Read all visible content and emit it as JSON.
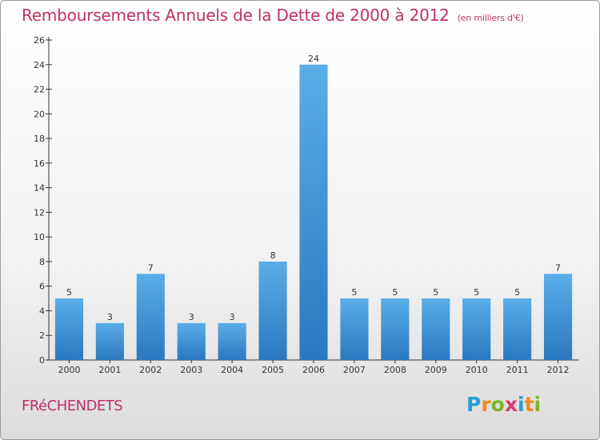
{
  "title": "Remboursements Annuels de la Dette de 2000 à 2012",
  "subtitle": "(en milliers d'€)",
  "commune": "FRéCHENDETS",
  "brand": {
    "letters": [
      "P",
      "r",
      "o",
      "x",
      "i",
      "t",
      "i"
    ],
    "colors": [
      "#2b9bd6",
      "#f08a1c",
      "#7ab52a",
      "#e03a6e",
      "#2b9bd6",
      "#f08a1c",
      "#7ab52a"
    ]
  },
  "colors": {
    "title": "#c0306a",
    "bar_light": "#5aaee8",
    "bar_dark": "#2a78c0"
  },
  "chart_data": {
    "type": "bar",
    "title": "Remboursements Annuels de la Dette de 2000 à 2012",
    "subtitle": "(en milliers d'€)",
    "categories": [
      "2000",
      "2001",
      "2002",
      "2003",
      "2004",
      "2005",
      "2006",
      "2007",
      "2008",
      "2009",
      "2010",
      "2011",
      "2012"
    ],
    "values": [
      5,
      3,
      7,
      3,
      3,
      8,
      24,
      5,
      5,
      5,
      5,
      5,
      7
    ],
    "ylim": [
      0,
      26
    ],
    "yticks": [
      0,
      2,
      4,
      6,
      8,
      10,
      12,
      14,
      16,
      18,
      20,
      22,
      24,
      26
    ],
    "xlabel": "",
    "ylabel": "",
    "grid": false,
    "legend": "none"
  }
}
